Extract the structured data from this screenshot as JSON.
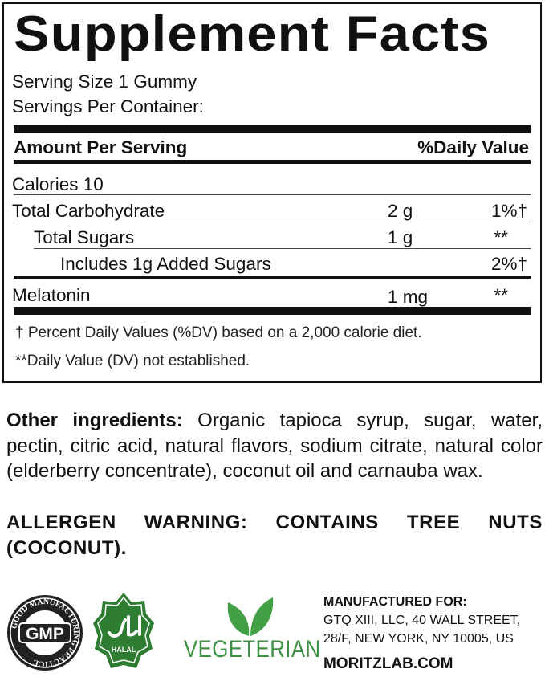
{
  "panel": {
    "title": "Supplement Facts",
    "serving_size": "Serving Size 1 Gummy",
    "servings_per_container": "Servings Per Container:",
    "header_amount": "Amount Per Serving",
    "header_dv": "%Daily Value",
    "rows": [
      {
        "name": "Calories  10",
        "amount": "",
        "dv": ""
      },
      {
        "name": "Total Carbohydrate",
        "amount": "2 g",
        "dv": "1%†"
      },
      {
        "name": "Total Sugars",
        "amount": "1 g",
        "dv": "**"
      },
      {
        "name": "Includes 1g Added Sugars",
        "amount": "",
        "dv": "2%†"
      },
      {
        "name": "Melatonin",
        "amount": "1 mg",
        "dv": "**"
      }
    ],
    "footnote_1": "† Percent Daily Values (%DV) based on a 2,000 calorie diet.",
    "footnote_2": "**Daily Value (DV) not established."
  },
  "ingredients": {
    "label": "Other ingredients:",
    "text": " Organic tapioca syrup, sugar, water, pectin, citric acid, natural flavors, sodium citrate, natural color (elderberry concentrate), coconut oil and carnauba wax.",
    "allergen": "ALLERGEN WARNING: CONTAINS TREE NUTS (COCONUT)."
  },
  "logos": {
    "gmp": "GMP",
    "gmp_ring": "GOOD MANUFACTURING PRACTICE",
    "halal": "HALAL",
    "vegetarian": "VEGETERIAN",
    "green": "#3a8a3a"
  },
  "manufacturer": {
    "heading": "MANUFACTURED FOR:",
    "line1": "GTQ XIII, LLC, 40 WALL STREET,",
    "line2": "28/F, NEW YORK, NY 10005, US",
    "website": "MORITZLAB.COM"
  }
}
